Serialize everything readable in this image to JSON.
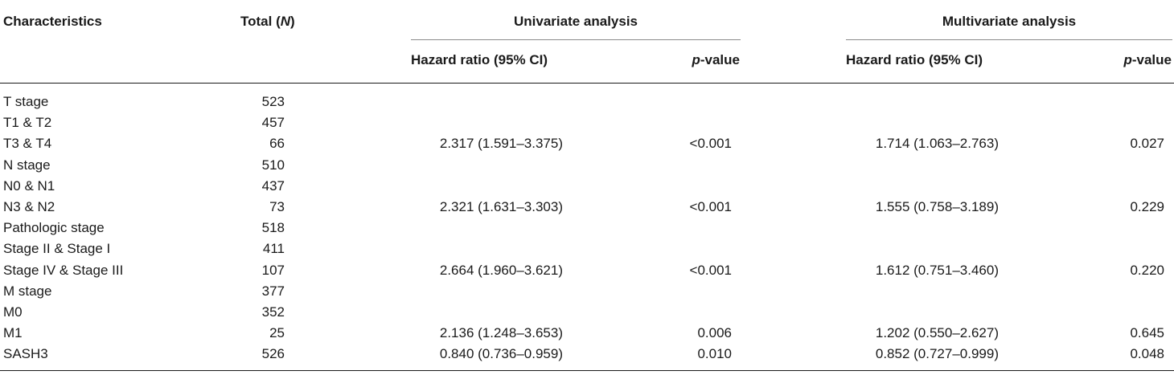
{
  "table": {
    "headers": {
      "characteristics": "Characteristics",
      "total_prefix": "Total (",
      "total_italic": "N",
      "total_suffix": ")",
      "univariate": "Univariate analysis",
      "multivariate": "Multivariate analysis",
      "hr_label": "Hazard ratio (95% CI)",
      "p_italic": "p",
      "p_suffix": "-value"
    },
    "rows": [
      {
        "label": "T stage",
        "total": "523",
        "uni_hr": "",
        "uni_p": "",
        "multi_hr": "",
        "multi_p": ""
      },
      {
        "label": "T1 & T2",
        "total": "457",
        "uni_hr": "",
        "uni_p": "",
        "multi_hr": "",
        "multi_p": ""
      },
      {
        "label": "T3 & T4",
        "total": "66",
        "uni_hr": "2.317 (1.591–3.375)",
        "uni_p": "<0.001",
        "multi_hr": "1.714 (1.063–2.763)",
        "multi_p": "0.027"
      },
      {
        "label": "N stage",
        "total": "510",
        "uni_hr": "",
        "uni_p": "",
        "multi_hr": "",
        "multi_p": ""
      },
      {
        "label": "N0 & N1",
        "total": "437",
        "uni_hr": "",
        "uni_p": "",
        "multi_hr": "",
        "multi_p": ""
      },
      {
        "label": "N3 & N2",
        "total": "73",
        "uni_hr": "2.321 (1.631–3.303)",
        "uni_p": "<0.001",
        "multi_hr": "1.555 (0.758–3.189)",
        "multi_p": "0.229"
      },
      {
        "label": "Pathologic stage",
        "total": "518",
        "uni_hr": "",
        "uni_p": "",
        "multi_hr": "",
        "multi_p": ""
      },
      {
        "label": "Stage II & Stage I",
        "total": "411",
        "uni_hr": "",
        "uni_p": "",
        "multi_hr": "",
        "multi_p": ""
      },
      {
        "label": "Stage IV & Stage III",
        "total": "107",
        "uni_hr": "2.664 (1.960–3.621)",
        "uni_p": "<0.001",
        "multi_hr": "1.612 (0.751–3.460)",
        "multi_p": "0.220"
      },
      {
        "label": "M stage",
        "total": "377",
        "uni_hr": "",
        "uni_p": "",
        "multi_hr": "",
        "multi_p": ""
      },
      {
        "label": "M0",
        "total": "352",
        "uni_hr": "",
        "uni_p": "",
        "multi_hr": "",
        "multi_p": ""
      },
      {
        "label": "M1",
        "total": "25",
        "uni_hr": "2.136 (1.248–3.653)",
        "uni_p": "0.006",
        "multi_hr": "1.202 (0.550–2.627)",
        "multi_p": "0.645"
      },
      {
        "label": "SASH3",
        "total": "526",
        "uni_hr": "0.840 (0.736–0.959)",
        "uni_p": "0.010",
        "multi_hr": "0.852 (0.727–0.999)",
        "multi_p": "0.048"
      }
    ]
  }
}
